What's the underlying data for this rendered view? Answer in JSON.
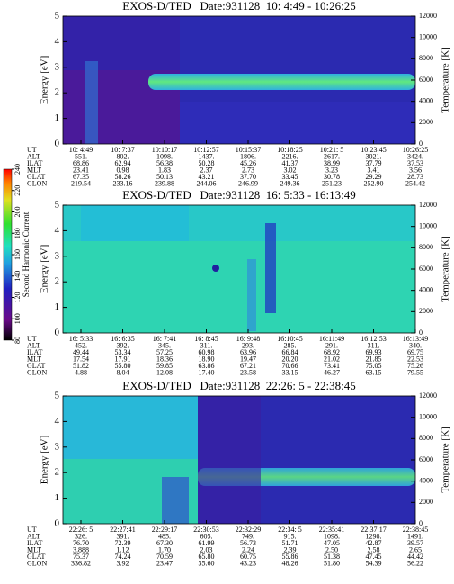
{
  "chart_data": [
    {
      "type": "heatmap",
      "title": "EXOS-D/TED   Date:931128  10: 4:49 - 10:26:25",
      "ylabel": "Energy [eV]",
      "y2label": "Temperature [K]",
      "ylim": [
        0,
        5
      ],
      "yticks": [
        0,
        1,
        2,
        3,
        4,
        5
      ],
      "y2lim": [
        0,
        12000
      ],
      "y2ticks": [
        0,
        2000,
        4000,
        6000,
        8000,
        10000,
        12000
      ],
      "row_labels": [
        "UT",
        "ALT",
        "ILAT",
        "MLT",
        "GLAT",
        "GLON"
      ],
      "rows": [
        [
          "10: 4:49",
          "10: 7:37",
          "10:10:17",
          "10:12:57",
          "10:15:37",
          "10:18:25",
          "10:21: 5",
          "10:23:45",
          "10:26:25"
        ],
        [
          "551.",
          "802.",
          "1098.",
          "1437.",
          "1806.",
          "2216.",
          "2617.",
          "3021.",
          "3424."
        ],
        [
          "68.86",
          "62.94",
          "56.38",
          "50.28",
          "45.26",
          "41.37",
          "38.99",
          "37.79",
          "37.53"
        ],
        [
          "23.41",
          "0.98",
          "1.83",
          "2.37",
          "2.73",
          "3.02",
          "3.23",
          "3.41",
          "3.56"
        ],
        [
          "67.35",
          "58.26",
          "50.13",
          "43.21",
          "37.70",
          "33.45",
          "30.78",
          "29.29",
          "28.73"
        ],
        [
          "219.54",
          "233.16",
          "239.88",
          "244.06",
          "246.99",
          "249.36",
          "251.23",
          "252.90",
          "254.42"
        ]
      ]
    },
    {
      "type": "heatmap",
      "title": "EXOS-D/TED   Date:931128  16: 5:33 - 16:13:49",
      "ylabel": "Energy [eV]",
      "y2label": "Temperature [K]",
      "ylim": [
        0,
        5
      ],
      "yticks": [
        0,
        1,
        2,
        3,
        4,
        5
      ],
      "y2lim": [
        0,
        12000
      ],
      "y2ticks": [
        0,
        2000,
        4000,
        6000,
        8000,
        10000,
        12000
      ],
      "row_labels": [
        "UT",
        "ALT",
        "ILAT",
        "MLT",
        "GLAT",
        "GLON"
      ],
      "rows": [
        [
          "16: 5:33",
          "16: 6:35",
          "16: 7:41",
          "16: 8:45",
          "16: 9:48",
          "16:10:45",
          "16:11:49",
          "16:12:53",
          "16:13:49"
        ],
        [
          "452.",
          "392.",
          "345.",
          "311.",
          "293.",
          "285.",
          "291.",
          "311.",
          "340."
        ],
        [
          "49.44",
          "53.34",
          "57.25",
          "60.98",
          "63.96",
          "66.84",
          "68.92",
          "69.93",
          "69.75"
        ],
        [
          "17.54",
          "17.91",
          "18.36",
          "18.90",
          "19.47",
          "20.20",
          "21.02",
          "21.85",
          "22.53"
        ],
        [
          "51.82",
          "55.80",
          "59.85",
          "63.86",
          "67.21",
          "70.66",
          "73.41",
          "75.05",
          "75.26"
        ],
        [
          "4.88",
          "8.04",
          "12.08",
          "17.40",
          "23.58",
          "33.15",
          "46.27",
          "63.15",
          "79.55"
        ]
      ]
    },
    {
      "type": "heatmap",
      "title": "EXOS-D/TED   Date:931128  22:26: 5 - 22:38:45",
      "ylabel": "Energy [eV]",
      "y2label": "Temperature [K]",
      "ylim": [
        0,
        5
      ],
      "yticks": [
        0,
        1,
        2,
        3,
        4,
        5
      ],
      "y2lim": [
        0,
        12000
      ],
      "y2ticks": [
        0,
        2000,
        4000,
        6000,
        8000,
        10000,
        12000
      ],
      "row_labels": [
        "UT",
        "ALT",
        "ILAT",
        "MLT",
        "GLAT",
        "GLON"
      ],
      "rows": [
        [
          "22:26: 5",
          "22:27:41",
          "22:29:17",
          "22:30:53",
          "22:32:29",
          "22:34: 5",
          "22:35:41",
          "22:37:17",
          "22:38:45"
        ],
        [
          "326.",
          "391.",
          "485.",
          "605.",
          "749.",
          "915.",
          "1098.",
          "1298.",
          "1491."
        ],
        [
          "76.70",
          "72.39",
          "67.30",
          "61.99",
          "56.73",
          "51.71",
          "47.05",
          "42.87",
          "39.57"
        ],
        [
          "3.888",
          "1.12",
          "1.70",
          "2.03",
          "2.24",
          "2.39",
          "2.50",
          "2.58",
          "2.65"
        ],
        [
          "75.37",
          "74.24",
          "70.59",
          "65.80",
          "60.75",
          "55.86",
          "51.38",
          "47.45",
          "44.42"
        ],
        [
          "336.82",
          "3.92",
          "23.47",
          "35.60",
          "43.23",
          "48.26",
          "51.80",
          "54.39",
          "56.22"
        ]
      ]
    }
  ],
  "colorbar": {
    "label": "Second Harmonic Current",
    "lim": [
      80,
      240
    ],
    "ticks": [
      80,
      100,
      120,
      140,
      160,
      180,
      200,
      220,
      240
    ]
  }
}
